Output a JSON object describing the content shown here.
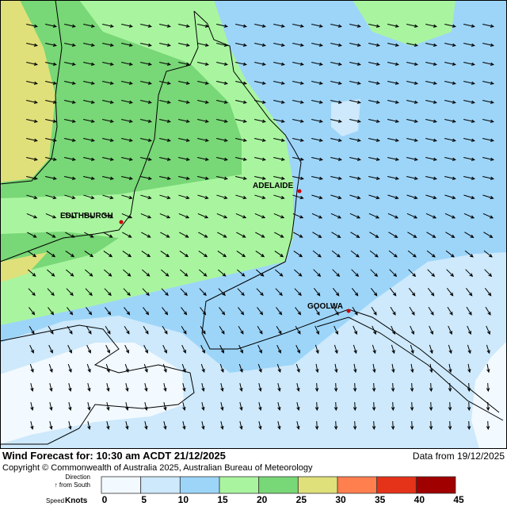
{
  "map": {
    "places": [
      {
        "label": "ADELAIDE"
      },
      {
        "label": "EDITHBURGH"
      },
      {
        "label": "GOOLWA"
      }
    ]
  },
  "footer": {
    "title": "Wind Forecast for: 10:30 am ACDT 21/12/2025",
    "data_from": "Data from 19/12/2025",
    "copyright": "Copyright © Commonwealth of Australia 2025, Australian Bureau of Meteorology"
  },
  "legend": {
    "direction": "Direction",
    "direction_note": "↑ from South",
    "speed": "Speed",
    "unit": "Knots",
    "ticks": [
      0,
      5,
      10,
      15,
      20,
      25,
      30,
      35,
      40,
      45
    ],
    "colors": [
      "#f2f9ff",
      "#cde9fb",
      "#9dd5f9",
      "#a9f59f",
      "#78d776",
      "#e0e07a",
      "#ff7f4f",
      "#e5331a",
      "#a00000"
    ]
  }
}
